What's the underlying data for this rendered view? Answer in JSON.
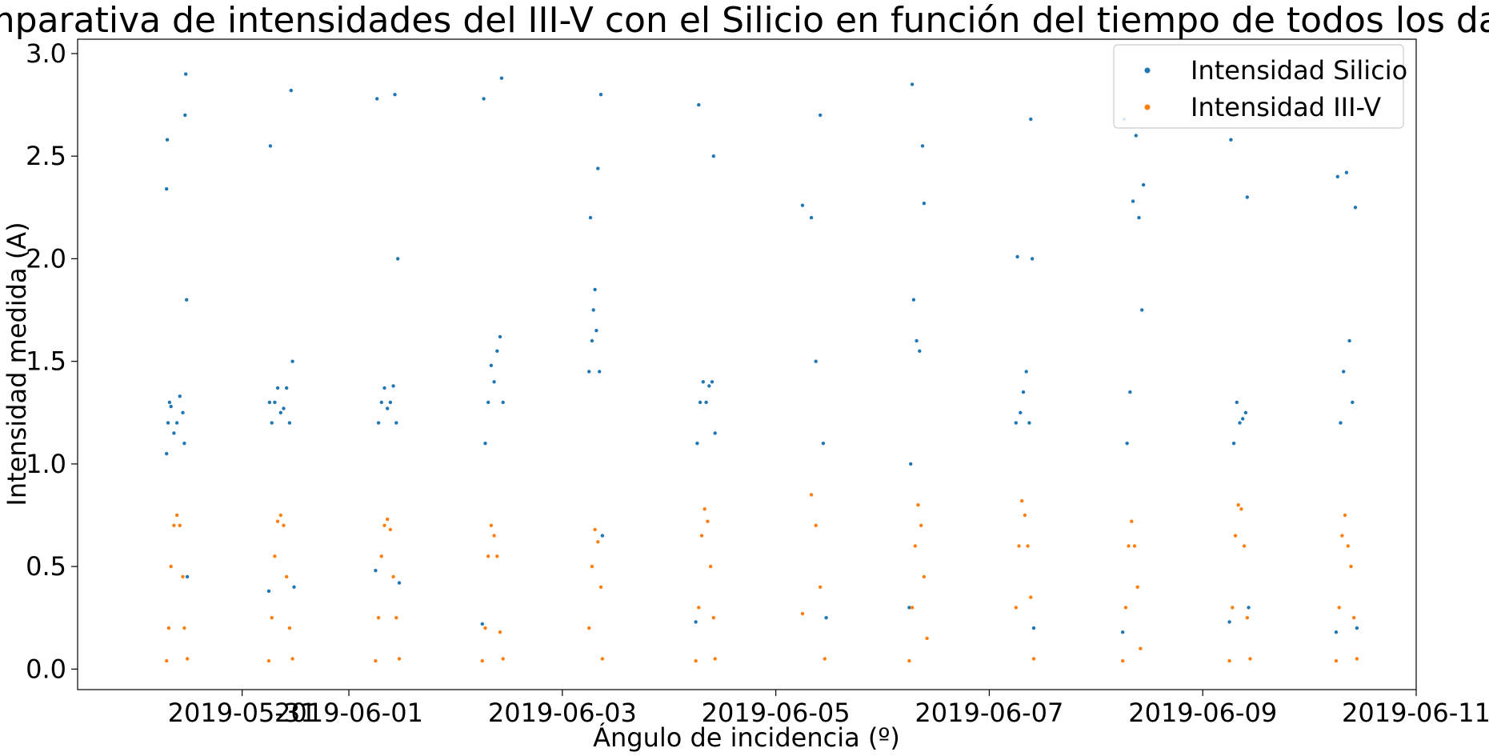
{
  "chart_data": {
    "type": "scatter",
    "title": "Comparativa de intensidades del III-V con el Silicio en función del tiempo de todos los datos",
    "xlabel": "Ángulo de incidencia (º)",
    "ylabel": "Intensidad medida (A)",
    "x_range": [
      "2019-05-29T11:00",
      "2019-06-11T00:00"
    ],
    "ylim": [
      -0.1,
      3.07
    ],
    "x_ticks": [
      {
        "date": "2019-05-31T00:00",
        "label": "2019-05-31"
      },
      {
        "date": "2019-06-01T00:00",
        "label": "2019-06-01"
      },
      {
        "date": "2019-06-03T00:00",
        "label": "2019-06-03"
      },
      {
        "date": "2019-06-05T00:00",
        "label": "2019-06-05"
      },
      {
        "date": "2019-06-07T00:00",
        "label": "2019-06-07"
      },
      {
        "date": "2019-06-09T00:00",
        "label": "2019-06-09"
      },
      {
        "date": "2019-06-11T00:00",
        "label": "2019-06-11"
      }
    ],
    "y_ticks": [
      {
        "value": 0.0,
        "label": "0.0"
      },
      {
        "value": 0.5,
        "label": "0.5"
      },
      {
        "value": 1.0,
        "label": "1.0"
      },
      {
        "value": 1.5,
        "label": "1.5"
      },
      {
        "value": 2.0,
        "label": "2.0"
      },
      {
        "value": 2.5,
        "label": "2.5"
      },
      {
        "value": 3.0,
        "label": "3.0"
      }
    ],
    "legend_position": "top-right",
    "grid": false,
    "series": [
      {
        "name": "Intensidad Silicio",
        "color": "#1f77b4",
        "points": [
          [
            "2019-05-30T07:00",
            1.05
          ],
          [
            "2019-05-30T07:00",
            2.34
          ],
          [
            "2019-05-30T07:10",
            2.58
          ],
          [
            "2019-05-30T07:20",
            1.2
          ],
          [
            "2019-05-30T07:40",
            1.3
          ],
          [
            "2019-05-30T08:00",
            1.28
          ],
          [
            "2019-05-30T08:40",
            1.15
          ],
          [
            "2019-05-30T09:20",
            1.2
          ],
          [
            "2019-05-30T10:00",
            1.33
          ],
          [
            "2019-05-30T10:40",
            1.25
          ],
          [
            "2019-05-30T11:00",
            1.1
          ],
          [
            "2019-05-30T11:10",
            2.7
          ],
          [
            "2019-05-30T11:20",
            2.9
          ],
          [
            "2019-05-30T11:30",
            1.8
          ],
          [
            "2019-05-30T11:40",
            0.45
          ],
          [
            "2019-05-31T06:00",
            0.38
          ],
          [
            "2019-05-31T06:10",
            1.3
          ],
          [
            "2019-05-31T06:20",
            2.55
          ],
          [
            "2019-05-31T06:40",
            1.2
          ],
          [
            "2019-05-31T07:20",
            1.3
          ],
          [
            "2019-05-31T08:00",
            1.37
          ],
          [
            "2019-05-31T08:40",
            1.25
          ],
          [
            "2019-05-31T09:20",
            1.27
          ],
          [
            "2019-05-31T10:00",
            1.37
          ],
          [
            "2019-05-31T10:40",
            1.2
          ],
          [
            "2019-05-31T11:00",
            2.82
          ],
          [
            "2019-05-31T11:20",
            1.5
          ],
          [
            "2019-05-31T11:40",
            0.4
          ],
          [
            "2019-06-01T06:00",
            0.48
          ],
          [
            "2019-06-01T06:20",
            2.78
          ],
          [
            "2019-06-01T06:40",
            1.2
          ],
          [
            "2019-06-01T07:20",
            1.3
          ],
          [
            "2019-06-01T08:00",
            1.37
          ],
          [
            "2019-06-01T08:40",
            1.27
          ],
          [
            "2019-06-01T09:20",
            1.3
          ],
          [
            "2019-06-01T10:00",
            1.38
          ],
          [
            "2019-06-01T10:20",
            2.8
          ],
          [
            "2019-06-01T10:40",
            1.2
          ],
          [
            "2019-06-01T11:00",
            2.0
          ],
          [
            "2019-06-01T11:20",
            0.42
          ],
          [
            "2019-06-02T06:00",
            0.22
          ],
          [
            "2019-06-02T06:20",
            2.78
          ],
          [
            "2019-06-02T06:40",
            1.1
          ],
          [
            "2019-06-02T07:20",
            1.3
          ],
          [
            "2019-06-02T08:00",
            1.48
          ],
          [
            "2019-06-02T08:40",
            1.4
          ],
          [
            "2019-06-02T09:20",
            1.55
          ],
          [
            "2019-06-02T10:00",
            1.62
          ],
          [
            "2019-06-02T10:20",
            2.88
          ],
          [
            "2019-06-02T10:40",
            1.3
          ],
          [
            "2019-06-03T06:00",
            1.45
          ],
          [
            "2019-06-03T06:20",
            2.2
          ],
          [
            "2019-06-03T06:40",
            1.6
          ],
          [
            "2019-06-03T07:00",
            1.75
          ],
          [
            "2019-06-03T07:20",
            1.85
          ],
          [
            "2019-06-03T07:40",
            1.65
          ],
          [
            "2019-06-03T08:00",
            2.44
          ],
          [
            "2019-06-03T08:20",
            1.45
          ],
          [
            "2019-06-03T08:40",
            2.8
          ],
          [
            "2019-06-03T09:00",
            0.65
          ],
          [
            "2019-06-04T06:00",
            0.23
          ],
          [
            "2019-06-04T06:20",
            1.1
          ],
          [
            "2019-06-04T06:40",
            2.75
          ],
          [
            "2019-06-04T07:00",
            1.3
          ],
          [
            "2019-06-04T07:40",
            1.4
          ],
          [
            "2019-06-04T08:20",
            1.3
          ],
          [
            "2019-06-04T09:00",
            1.38
          ],
          [
            "2019-06-04T09:40",
            1.4
          ],
          [
            "2019-06-04T10:00",
            2.5
          ],
          [
            "2019-06-04T10:20",
            1.15
          ],
          [
            "2019-06-05T06:00",
            2.26
          ],
          [
            "2019-06-05T08:00",
            2.2
          ],
          [
            "2019-06-05T09:00",
            1.5
          ],
          [
            "2019-06-05T10:00",
            2.7
          ],
          [
            "2019-06-05T10:40",
            1.1
          ],
          [
            "2019-06-05T11:20",
            0.25
          ],
          [
            "2019-06-06T06:00",
            0.3
          ],
          [
            "2019-06-06T06:20",
            1.0
          ],
          [
            "2019-06-06T06:40",
            2.85
          ],
          [
            "2019-06-06T07:00",
            1.8
          ],
          [
            "2019-06-06T07:40",
            1.6
          ],
          [
            "2019-06-06T08:20",
            1.55
          ],
          [
            "2019-06-06T09:00",
            2.55
          ],
          [
            "2019-06-06T09:20",
            2.27
          ],
          [
            "2019-06-07T06:00",
            1.2
          ],
          [
            "2019-06-07T06:20",
            2.01
          ],
          [
            "2019-06-07T07:00",
            1.25
          ],
          [
            "2019-06-07T07:40",
            1.35
          ],
          [
            "2019-06-07T08:20",
            1.45
          ],
          [
            "2019-06-07T09:00",
            1.2
          ],
          [
            "2019-06-07T09:20",
            2.68
          ],
          [
            "2019-06-07T09:40",
            2.0
          ],
          [
            "2019-06-07T10:00",
            0.2
          ],
          [
            "2019-06-08T06:00",
            0.18
          ],
          [
            "2019-06-08T06:20",
            2.68
          ],
          [
            "2019-06-08T07:00",
            1.1
          ],
          [
            "2019-06-08T07:40",
            1.35
          ],
          [
            "2019-06-08T08:20",
            2.28
          ],
          [
            "2019-06-08T09:00",
            2.6
          ],
          [
            "2019-06-08T09:40",
            2.2
          ],
          [
            "2019-06-08T10:20",
            1.75
          ],
          [
            "2019-06-08T10:40",
            2.36
          ],
          [
            "2019-06-09T06:00",
            0.23
          ],
          [
            "2019-06-09T06:20",
            2.58
          ],
          [
            "2019-06-09T07:00",
            1.1
          ],
          [
            "2019-06-09T07:40",
            1.3
          ],
          [
            "2019-06-09T08:20",
            1.2
          ],
          [
            "2019-06-09T09:00",
            1.22
          ],
          [
            "2019-06-09T09:40",
            1.25
          ],
          [
            "2019-06-09T10:00",
            2.3
          ],
          [
            "2019-06-09T10:20",
            0.3
          ],
          [
            "2019-06-10T06:00",
            0.18
          ],
          [
            "2019-06-10T06:20",
            2.4
          ],
          [
            "2019-06-10T07:00",
            1.2
          ],
          [
            "2019-06-10T07:40",
            1.45
          ],
          [
            "2019-06-10T08:20",
            2.42
          ],
          [
            "2019-06-10T09:00",
            1.6
          ],
          [
            "2019-06-10T09:40",
            1.3
          ],
          [
            "2019-06-10T10:20",
            2.25
          ],
          [
            "2019-06-10T10:40",
            0.2
          ]
        ]
      },
      {
        "name": "Intensidad III-V",
        "color": "#ff7f0e",
        "points": [
          [
            "2019-05-30T07:00",
            0.04
          ],
          [
            "2019-05-30T07:30",
            0.2
          ],
          [
            "2019-05-30T08:00",
            0.5
          ],
          [
            "2019-05-30T08:40",
            0.7
          ],
          [
            "2019-05-30T09:20",
            0.75
          ],
          [
            "2019-05-30T10:00",
            0.7
          ],
          [
            "2019-05-30T10:40",
            0.45
          ],
          [
            "2019-05-30T11:00",
            0.2
          ],
          [
            "2019-05-30T11:40",
            0.05
          ],
          [
            "2019-05-31T06:00",
            0.04
          ],
          [
            "2019-05-31T06:40",
            0.25
          ],
          [
            "2019-05-31T07:20",
            0.55
          ],
          [
            "2019-05-31T08:00",
            0.72
          ],
          [
            "2019-05-31T08:40",
            0.75
          ],
          [
            "2019-05-31T09:20",
            0.7
          ],
          [
            "2019-05-31T10:00",
            0.45
          ],
          [
            "2019-05-31T10:40",
            0.2
          ],
          [
            "2019-05-31T11:20",
            0.05
          ],
          [
            "2019-06-01T06:00",
            0.04
          ],
          [
            "2019-06-01T06:40",
            0.25
          ],
          [
            "2019-06-01T07:20",
            0.55
          ],
          [
            "2019-06-01T08:00",
            0.7
          ],
          [
            "2019-06-01T08:40",
            0.73
          ],
          [
            "2019-06-01T09:20",
            0.68
          ],
          [
            "2019-06-01T10:00",
            0.45
          ],
          [
            "2019-06-01T10:40",
            0.25
          ],
          [
            "2019-06-01T11:20",
            0.05
          ],
          [
            "2019-06-02T06:00",
            0.04
          ],
          [
            "2019-06-02T06:40",
            0.2
          ],
          [
            "2019-06-02T07:20",
            0.55
          ],
          [
            "2019-06-02T08:00",
            0.7
          ],
          [
            "2019-06-02T08:40",
            0.65
          ],
          [
            "2019-06-02T09:20",
            0.55
          ],
          [
            "2019-06-02T10:00",
            0.18
          ],
          [
            "2019-06-02T10:40",
            0.05
          ],
          [
            "2019-06-03T06:00",
            0.2
          ],
          [
            "2019-06-03T06:40",
            0.5
          ],
          [
            "2019-06-03T07:20",
            0.68
          ],
          [
            "2019-06-03T08:00",
            0.62
          ],
          [
            "2019-06-03T08:40",
            0.4
          ],
          [
            "2019-06-03T09:00",
            0.05
          ],
          [
            "2019-06-04T06:00",
            0.04
          ],
          [
            "2019-06-04T06:40",
            0.3
          ],
          [
            "2019-06-04T07:20",
            0.65
          ],
          [
            "2019-06-04T08:00",
            0.78
          ],
          [
            "2019-06-04T08:40",
            0.72
          ],
          [
            "2019-06-04T09:20",
            0.5
          ],
          [
            "2019-06-04T10:00",
            0.25
          ],
          [
            "2019-06-04T10:20",
            0.05
          ],
          [
            "2019-06-05T06:00",
            0.27
          ],
          [
            "2019-06-05T08:00",
            0.85
          ],
          [
            "2019-06-05T09:00",
            0.7
          ],
          [
            "2019-06-05T10:00",
            0.4
          ],
          [
            "2019-06-05T11:00",
            0.05
          ],
          [
            "2019-06-06T06:00",
            0.04
          ],
          [
            "2019-06-06T06:40",
            0.3
          ],
          [
            "2019-06-06T07:20",
            0.6
          ],
          [
            "2019-06-06T08:00",
            0.8
          ],
          [
            "2019-06-06T08:40",
            0.7
          ],
          [
            "2019-06-06T09:20",
            0.45
          ],
          [
            "2019-06-06T10:00",
            0.15
          ],
          [
            "2019-06-07T06:00",
            0.3
          ],
          [
            "2019-06-07T06:40",
            0.6
          ],
          [
            "2019-06-07T07:20",
            0.82
          ],
          [
            "2019-06-07T08:00",
            0.75
          ],
          [
            "2019-06-07T08:40",
            0.6
          ],
          [
            "2019-06-07T09:20",
            0.35
          ],
          [
            "2019-06-07T10:00",
            0.05
          ],
          [
            "2019-06-08T06:00",
            0.04
          ],
          [
            "2019-06-08T06:40",
            0.3
          ],
          [
            "2019-06-08T07:20",
            0.6
          ],
          [
            "2019-06-08T08:00",
            0.72
          ],
          [
            "2019-06-08T08:40",
            0.6
          ],
          [
            "2019-06-08T09:20",
            0.4
          ],
          [
            "2019-06-08T10:00",
            0.1
          ],
          [
            "2019-06-09T06:00",
            0.04
          ],
          [
            "2019-06-09T06:40",
            0.3
          ],
          [
            "2019-06-09T07:20",
            0.65
          ],
          [
            "2019-06-09T08:00",
            0.8
          ],
          [
            "2019-06-09T08:40",
            0.78
          ],
          [
            "2019-06-09T09:20",
            0.6
          ],
          [
            "2019-06-09T10:00",
            0.25
          ],
          [
            "2019-06-09T10:40",
            0.05
          ],
          [
            "2019-06-10T06:00",
            0.04
          ],
          [
            "2019-06-10T06:40",
            0.3
          ],
          [
            "2019-06-10T07:20",
            0.65
          ],
          [
            "2019-06-10T08:00",
            0.75
          ],
          [
            "2019-06-10T08:40",
            0.6
          ],
          [
            "2019-06-10T09:20",
            0.5
          ],
          [
            "2019-06-10T10:00",
            0.25
          ],
          [
            "2019-06-10T10:40",
            0.05
          ]
        ]
      }
    ]
  }
}
